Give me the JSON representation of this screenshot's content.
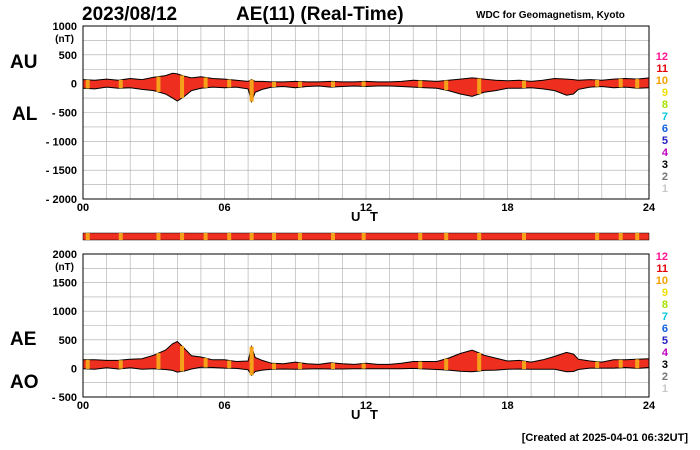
{
  "header": {
    "date": "2023/08/12",
    "title": "AE(11) (Real-Time)",
    "source": "WDC for Geomagnetism, Kyoto"
  },
  "footer": "[Created at 2025-04-01 06:32UT]",
  "colors": {
    "fill": "#ee2e1e",
    "outline": "#000000",
    "grid": "#aaaaaa",
    "strip_base": "#ee2e1e",
    "strip_mark": "#f5a21a"
  },
  "legend": [
    {
      "label": "12",
      "color": "#ff1493"
    },
    {
      "label": "11",
      "color": "#e8000b"
    },
    {
      "label": "10",
      "color": "#f59e00"
    },
    {
      "label": "9",
      "color": "#f0e000"
    },
    {
      "label": "8",
      "color": "#a8e000"
    },
    {
      "label": "7",
      "color": "#00c8e0"
    },
    {
      "label": "6",
      "color": "#1060e0"
    },
    {
      "label": "5",
      "color": "#2020c0"
    },
    {
      "label": "4",
      "color": "#c000c0"
    },
    {
      "label": "3",
      "color": "#000000"
    },
    {
      "label": "2",
      "color": "#777777"
    },
    {
      "label": "1",
      "color": "#c8c8c8"
    }
  ],
  "chart_data": [
    {
      "type": "area",
      "series_labels": [
        "AU",
        "AL"
      ],
      "unit_label": "(nT)",
      "xlabel": "U T",
      "xlim": [
        0,
        24
      ],
      "xticks": [
        "00",
        "06",
        "12",
        "18",
        "24"
      ],
      "ylim": [
        -2000,
        1000
      ],
      "yticks": [
        "1000",
        "500",
        "0",
        "- 500",
        "- 1000",
        "- 1500",
        "- 2000"
      ],
      "grid": true,
      "x": [
        0,
        0.5,
        1,
        1.5,
        2,
        2.5,
        3,
        3.5,
        3.8,
        4,
        4.3,
        4.6,
        5,
        5.5,
        6,
        6.5,
        7,
        7.15,
        7.3,
        7.6,
        8,
        8.5,
        9,
        9.5,
        10,
        10.5,
        11,
        11.5,
        12,
        12.5,
        13,
        13.5,
        14,
        14.5,
        15,
        15.5,
        16,
        16.5,
        16.8,
        17,
        17.5,
        18,
        18.5,
        19,
        19.5,
        20,
        20.5,
        20.8,
        21,
        21.5,
        22,
        22.5,
        23,
        23.5,
        24
      ],
      "au": [
        70,
        60,
        80,
        60,
        90,
        70,
        110,
        140,
        180,
        170,
        130,
        100,
        120,
        90,
        80,
        60,
        40,
        70,
        40,
        40,
        30,
        30,
        40,
        30,
        30,
        40,
        30,
        30,
        40,
        30,
        30,
        40,
        60,
        50,
        40,
        60,
        80,
        100,
        90,
        80,
        60,
        50,
        60,
        40,
        60,
        90,
        80,
        70,
        60,
        70,
        60,
        80,
        90,
        80,
        100
      ],
      "al": [
        -80,
        -90,
        -60,
        -80,
        -70,
        -100,
        -120,
        -180,
        -250,
        -300,
        -220,
        -120,
        -80,
        -60,
        -70,
        -60,
        -90,
        -310,
        -150,
        -100,
        -60,
        -50,
        -70,
        -50,
        -40,
        -60,
        -50,
        -40,
        -50,
        -40,
        -40,
        -50,
        -60,
        -70,
        -80,
        -120,
        -180,
        -220,
        -180,
        -150,
        -120,
        -80,
        -80,
        -70,
        -90,
        -120,
        -200,
        -180,
        -100,
        -60,
        -50,
        -70,
        -60,
        -80,
        -70
      ]
    },
    {
      "type": "area",
      "series_labels": [
        "AE",
        "AO"
      ],
      "unit_label": "(nT)",
      "xlabel": "U T",
      "xlim": [
        0,
        24
      ],
      "xticks": [
        "00",
        "06",
        "12",
        "18",
        "24"
      ],
      "ylim": [
        -500,
        2000
      ],
      "yticks": [
        "2000",
        "1500",
        "1000",
        "500",
        "0",
        "- 500"
      ],
      "grid": true
    }
  ],
  "strip_marks": [
    0.2,
    1.6,
    3.2,
    4.2,
    5.2,
    6.2,
    7.15,
    8.1,
    9.2,
    10.6,
    11.9,
    14.3,
    15.4,
    16.8,
    18.7,
    21.8,
    22.8,
    23.5
  ]
}
